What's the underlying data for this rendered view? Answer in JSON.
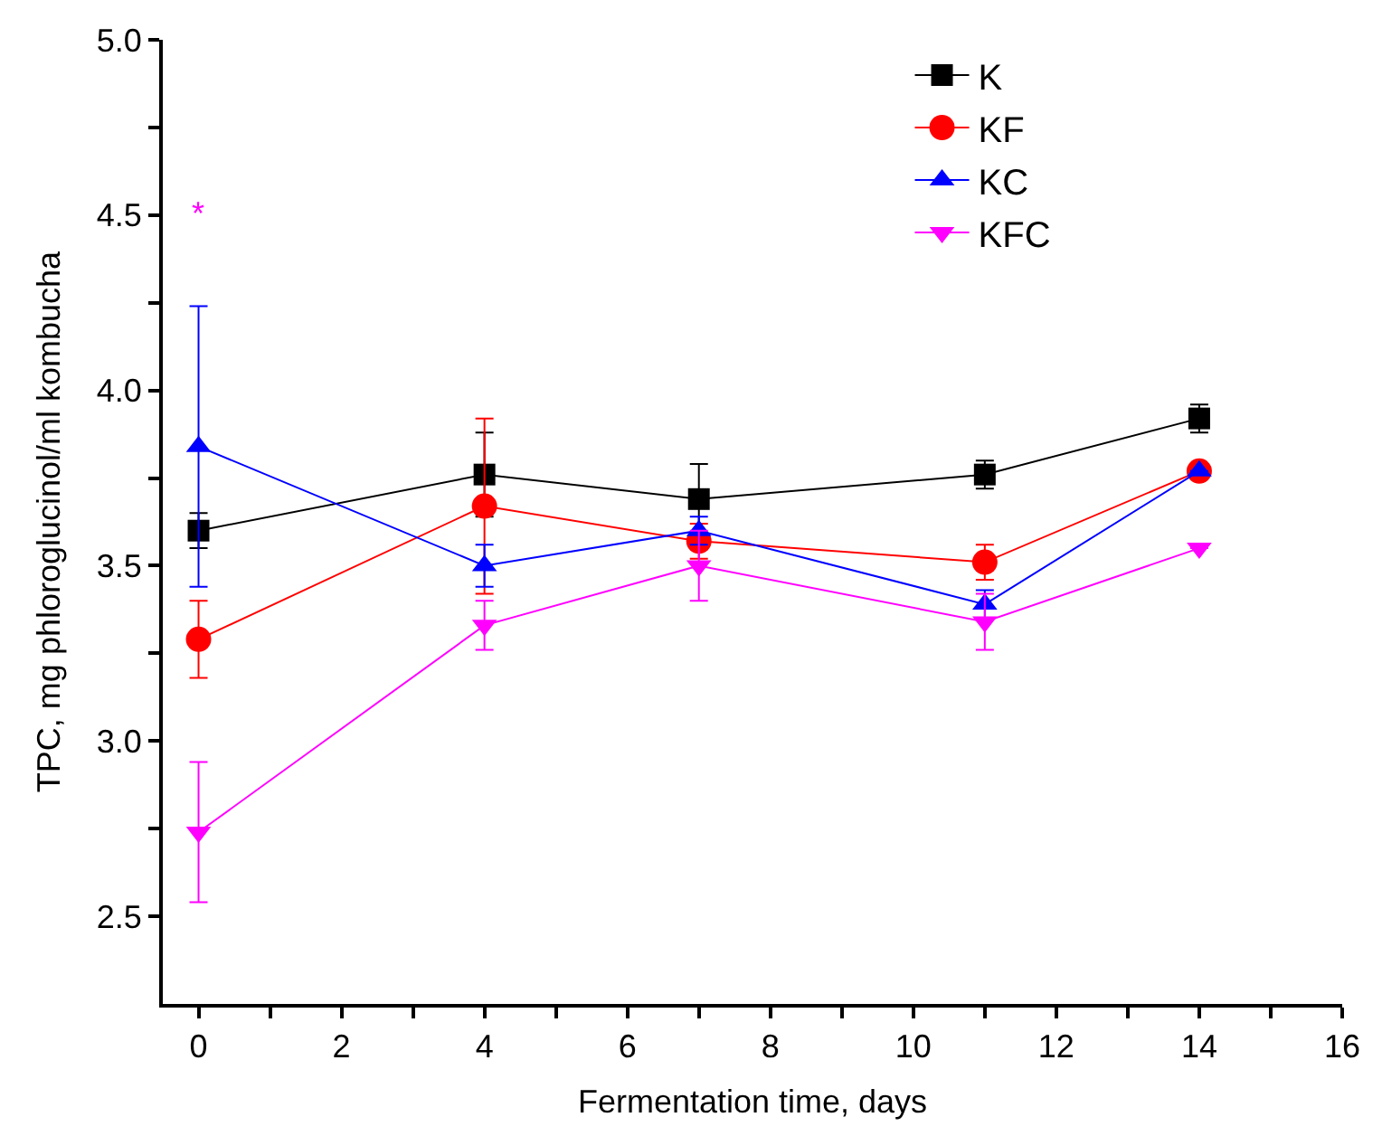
{
  "chart_data": {
    "type": "line",
    "xlabel": "Fermentation time, days",
    "ylabel": "TPC, mg phloroglucinol/ml kombucha",
    "x": [
      0,
      4,
      7,
      11,
      14
    ],
    "series": [
      {
        "name": "K",
        "color": "#000000",
        "marker": "square",
        "values": [
          3.6,
          3.76,
          3.69,
          3.76,
          3.92
        ],
        "errors": [
          0.05,
          0.12,
          0.1,
          0.04,
          0.04
        ]
      },
      {
        "name": "KF",
        "color": "#ff0000",
        "marker": "circle",
        "values": [
          3.29,
          3.67,
          3.57,
          3.51,
          3.77
        ],
        "errors": [
          0.11,
          0.25,
          0.05,
          0.05,
          null
        ]
      },
      {
        "name": "KC",
        "color": "#0000ff",
        "marker": "triangle",
        "values": [
          3.84,
          3.5,
          3.6,
          3.39,
          3.77
        ],
        "errors": [
          0.4,
          0.06,
          0.04,
          0.04,
          null
        ]
      },
      {
        "name": "KFC",
        "color": "#ff00ff",
        "marker": "triangle-down",
        "values": [
          2.74,
          3.33,
          3.5,
          3.34,
          3.55
        ],
        "errors": [
          0.2,
          0.07,
          0.1,
          0.08,
          null
        ]
      }
    ],
    "annotations": [
      "*"
    ],
    "xlim": [
      -0.5,
      16
    ],
    "xticks": [
      0,
      {
        "value": 1,
        "label": null
      },
      2,
      {
        "value": 3,
        "label": null
      },
      4,
      {
        "value": 5,
        "label": null
      },
      6,
      {
        "value": 7,
        "label": null
      },
      8,
      {
        "value": 9,
        "label": null
      },
      10,
      {
        "value": 11,
        "label": null
      },
      12,
      {
        "value": 13,
        "label": null
      },
      14,
      {
        "value": 15,
        "label": null
      },
      16
    ],
    "ylim": [
      2.25,
      5.0
    ],
    "yticks": [
      {
        "value": 2.5,
        "label": "2.5"
      },
      {
        "value": 2.75,
        "label": null
      },
      {
        "value": 3.0,
        "label": "3.0"
      },
      {
        "value": 3.25,
        "label": null
      },
      {
        "value": 3.5,
        "label": "3.5"
      },
      {
        "value": 3.75,
        "label": null
      },
      {
        "value": 4.0,
        "label": "4.0"
      },
      {
        "value": 4.25,
        "label": null
      },
      {
        "value": 4.5,
        "label": "4.5"
      },
      {
        "value": 4.75,
        "label": null
      },
      {
        "value": 5.0,
        "label": "5.0"
      }
    ],
    "legend": "top right",
    "line_style": "solid"
  }
}
